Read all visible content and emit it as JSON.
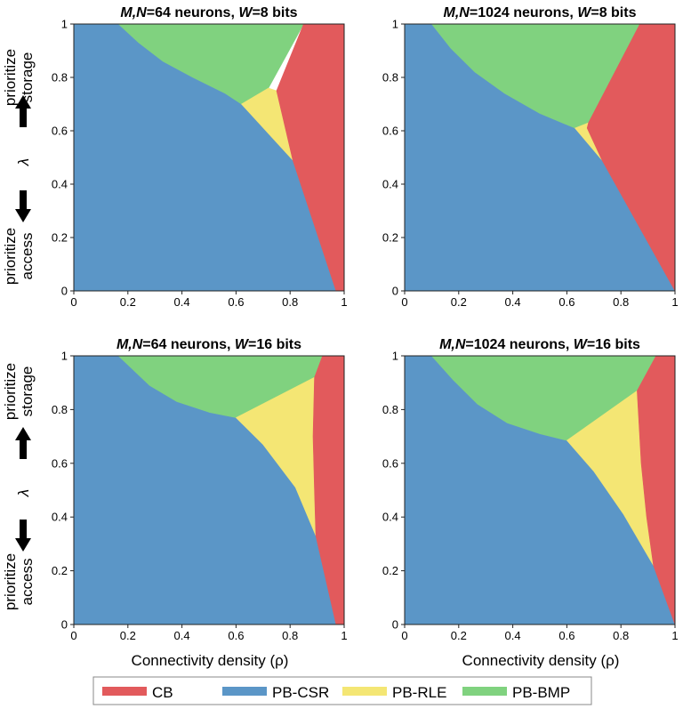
{
  "figure": {
    "xlabel": "Connectivity density (ρ)",
    "ylabel_symbol": "λ",
    "storage_label": [
      "prioritize",
      "storage"
    ],
    "access_label": [
      "prioritize",
      "access"
    ]
  },
  "legend": [
    {
      "key": "CB",
      "label": "CB",
      "color": "#e25a5c"
    },
    {
      "key": "CSR",
      "label": "PB-CSR",
      "color": "#5b96c7"
    },
    {
      "key": "RLE",
      "label": "PB-RLE",
      "color": "#f4e674"
    },
    {
      "key": "BMP",
      "label": "PB-BMP",
      "color": "#80d27f"
    }
  ],
  "chart_data": [
    {
      "type": "area",
      "title_parts": [
        [
          "M,N",
          true
        ],
        [
          "=64 neurons, ",
          false
        ],
        [
          "W",
          true
        ],
        [
          "=8 bits",
          false
        ]
      ],
      "xlabel": "",
      "ylabel": "λ",
      "xlim": [
        0,
        1
      ],
      "ylim": [
        0,
        1
      ],
      "xticks": [
        "0",
        "0.2",
        "0.4",
        "0.6",
        "0.8",
        "1"
      ],
      "yticks": [
        "0",
        "0.2",
        "0.4",
        "0.6",
        "0.8",
        "1"
      ],
      "regions": {
        "CSR": [
          [
            0,
            0
          ],
          [
            0.97,
            0
          ],
          [
            0.81,
            0.49
          ],
          [
            0.62,
            0.7
          ],
          [
            0.56,
            0.74
          ],
          [
            0.44,
            0.8
          ],
          [
            0.33,
            0.86
          ],
          [
            0.24,
            0.93
          ],
          [
            0.165,
            1
          ],
          [
            0,
            1
          ]
        ],
        "BMP": [
          [
            0.165,
            1
          ],
          [
            0.24,
            0.93
          ],
          [
            0.33,
            0.86
          ],
          [
            0.44,
            0.8
          ],
          [
            0.56,
            0.74
          ],
          [
            0.62,
            0.7
          ],
          [
            0.72,
            0.76
          ],
          [
            0.85,
            1
          ]
        ],
        "RLE": [
          [
            0.62,
            0.7
          ],
          [
            0.72,
            0.76
          ],
          [
            0.75,
            0.75
          ],
          [
            0.81,
            0.49
          ]
        ],
        "CB": [
          [
            0.85,
            1
          ],
          [
            0.75,
            0.75
          ],
          [
            0.81,
            0.49
          ],
          [
            0.97,
            0
          ],
          [
            1,
            0
          ],
          [
            1,
            1
          ]
        ]
      }
    },
    {
      "type": "area",
      "title_parts": [
        [
          "M,N",
          true
        ],
        [
          "=1024 neurons, ",
          false
        ],
        [
          "W",
          true
        ],
        [
          "=8 bits",
          false
        ]
      ],
      "xlabel": "",
      "ylabel": "",
      "xlim": [
        0,
        1
      ],
      "ylim": [
        0,
        1
      ],
      "xticks": [
        "0",
        "0.2",
        "0.4",
        "0.6",
        "0.8",
        "1"
      ],
      "yticks": [
        "0",
        "0.2",
        "0.4",
        "0.6",
        "0.8",
        "1"
      ],
      "regions": {
        "CSR": [
          [
            0,
            0
          ],
          [
            1,
            0
          ],
          [
            0.73,
            0.49
          ],
          [
            0.63,
            0.61
          ],
          [
            0.5,
            0.665
          ],
          [
            0.37,
            0.74
          ],
          [
            0.26,
            0.82
          ],
          [
            0.17,
            0.91
          ],
          [
            0.1,
            1
          ],
          [
            0,
            1
          ]
        ],
        "BMP": [
          [
            0.1,
            1
          ],
          [
            0.17,
            0.91
          ],
          [
            0.26,
            0.82
          ],
          [
            0.37,
            0.74
          ],
          [
            0.5,
            0.665
          ],
          [
            0.63,
            0.61
          ],
          [
            0.68,
            0.63
          ],
          [
            0.87,
            1
          ]
        ],
        "RLE": [
          [
            0.63,
            0.61
          ],
          [
            0.68,
            0.63
          ],
          [
            0.675,
            0.61
          ],
          [
            0.73,
            0.49
          ]
        ],
        "CB": [
          [
            0.87,
            1
          ],
          [
            0.68,
            0.63
          ],
          [
            0.675,
            0.61
          ],
          [
            0.73,
            0.49
          ],
          [
            1,
            0
          ],
          [
            1,
            1
          ]
        ]
      }
    },
    {
      "type": "area",
      "title_parts": [
        [
          "M,N",
          true
        ],
        [
          "=64 neurons, ",
          false
        ],
        [
          "W",
          true
        ],
        [
          "=16 bits",
          false
        ]
      ],
      "xlabel": "Connectivity density (ρ)",
      "ylabel": "λ",
      "xlim": [
        0,
        1
      ],
      "ylim": [
        0,
        1
      ],
      "xticks": [
        "0",
        "0.2",
        "0.4",
        "0.6",
        "0.8",
        "1"
      ],
      "yticks": [
        "0",
        "0.2",
        "0.4",
        "0.6",
        "0.8",
        "1"
      ],
      "regions": {
        "CSR": [
          [
            0,
            0
          ],
          [
            0.97,
            0
          ],
          [
            0.895,
            0.33
          ],
          [
            0.82,
            0.51
          ],
          [
            0.7,
            0.67
          ],
          [
            0.6,
            0.77
          ],
          [
            0.5,
            0.79
          ],
          [
            0.38,
            0.83
          ],
          [
            0.28,
            0.89
          ],
          [
            0.165,
            1
          ],
          [
            0,
            1
          ]
        ],
        "BMP": [
          [
            0.165,
            1
          ],
          [
            0.28,
            0.89
          ],
          [
            0.38,
            0.83
          ],
          [
            0.5,
            0.79
          ],
          [
            0.6,
            0.77
          ],
          [
            0.89,
            0.92
          ],
          [
            0.92,
            1
          ]
        ],
        "RLE": [
          [
            0.6,
            0.77
          ],
          [
            0.89,
            0.92
          ],
          [
            0.885,
            0.7
          ],
          [
            0.89,
            0.5
          ],
          [
            0.895,
            0.33
          ],
          [
            0.82,
            0.51
          ],
          [
            0.7,
            0.67
          ]
        ],
        "CB": [
          [
            0.92,
            1
          ],
          [
            0.89,
            0.92
          ],
          [
            0.885,
            0.7
          ],
          [
            0.89,
            0.5
          ],
          [
            0.895,
            0.33
          ],
          [
            0.97,
            0
          ],
          [
            1,
            0
          ],
          [
            1,
            1
          ]
        ]
      }
    },
    {
      "type": "area",
      "title_parts": [
        [
          "M,N",
          true
        ],
        [
          "=1024 neurons, ",
          false
        ],
        [
          "W",
          true
        ],
        [
          "=16 bits",
          false
        ]
      ],
      "xlabel": "Connectivity density (ρ)",
      "ylabel": "",
      "xlim": [
        0,
        1
      ],
      "ylim": [
        0,
        1
      ],
      "xticks": [
        "0",
        "0.2",
        "0.4",
        "0.6",
        "0.8",
        "1"
      ],
      "yticks": [
        "0",
        "0.2",
        "0.4",
        "0.6",
        "0.8",
        "1"
      ],
      "regions": {
        "CSR": [
          [
            0,
            0
          ],
          [
            1,
            0
          ],
          [
            0.92,
            0.22
          ],
          [
            0.81,
            0.41
          ],
          [
            0.7,
            0.57
          ],
          [
            0.6,
            0.685
          ],
          [
            0.5,
            0.71
          ],
          [
            0.38,
            0.75
          ],
          [
            0.27,
            0.82
          ],
          [
            0.18,
            0.91
          ],
          [
            0.1,
            1
          ],
          [
            0,
            1
          ]
        ],
        "BMP": [
          [
            0.1,
            1
          ],
          [
            0.18,
            0.91
          ],
          [
            0.27,
            0.82
          ],
          [
            0.38,
            0.75
          ],
          [
            0.5,
            0.71
          ],
          [
            0.6,
            0.685
          ],
          [
            0.86,
            0.87
          ],
          [
            0.93,
            1
          ]
        ],
        "RLE": [
          [
            0.6,
            0.685
          ],
          [
            0.86,
            0.87
          ],
          [
            0.875,
            0.6
          ],
          [
            0.895,
            0.4
          ],
          [
            0.92,
            0.22
          ],
          [
            0.81,
            0.41
          ],
          [
            0.7,
            0.57
          ]
        ],
        "CB": [
          [
            0.93,
            1
          ],
          [
            0.86,
            0.87
          ],
          [
            0.875,
            0.6
          ],
          [
            0.895,
            0.4
          ],
          [
            0.92,
            0.22
          ],
          [
            1,
            0
          ],
          [
            1,
            1
          ]
        ]
      }
    }
  ]
}
